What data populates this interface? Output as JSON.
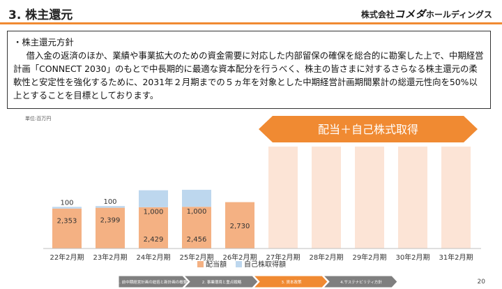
{
  "header": {
    "title": "3. 株主還元",
    "logo_prefix": "株式会社",
    "logo_brand": "コメダ",
    "logo_suffix": "ホールディングス"
  },
  "policy": {
    "heading": "・株主還元方針",
    "body": "借入金の返済のほか、業績や事業拡大のための資金需要に対応した内部留保の確保を総合的に勘案した上で、中期経営計画「CONNECT 2030」のもとで中長期的に最適な資本配分を行うべく、株主の皆さまに対するさらなる株主還元の柔軟性と安定性を強化するために、2031年２月期までの５ヵ年を対象とした中期経営計画期間累計の総還元性向を50%以上とすることを目標としております。"
  },
  "unit_label": "単位:百万円",
  "banner_label": "配当＋自己株式取得",
  "chart_data": {
    "type": "bar",
    "stacked": true,
    "categories": [
      "22年2月期",
      "23年2月期",
      "24年2月期",
      "25年2月期",
      "26年2月期",
      "27年2月期",
      "28年2月期",
      "29年2月期",
      "30年2月期",
      "31年2月期"
    ],
    "series": [
      {
        "name": "配当額",
        "values": [
          2353,
          2399,
          2429,
          2456,
          2730,
          null,
          null,
          null,
          null,
          null
        ],
        "color": "#f4b183"
      },
      {
        "name": "自己株取得額",
        "values": [
          100,
          100,
          1000,
          1000,
          null,
          null,
          null,
          null,
          null,
          null
        ],
        "color": "#bdd7ee"
      }
    ],
    "planned_categories": [
      "27年2月期",
      "28年2月期",
      "29年2月期",
      "30年2月期",
      "31年2月期"
    ],
    "planned_color": "#fce4d6",
    "ylim": [
      0,
      6000
    ],
    "grid": false,
    "legend": "bottom"
  },
  "footer": {
    "steps": [
      {
        "label": "1. 前中期経営計画の総括と新計画の概要",
        "active": false
      },
      {
        "label": "2. 事業環境と重点戦略",
        "active": false
      },
      {
        "label": "3. 資本政策",
        "active": true
      },
      {
        "label": "4.サステナビリティ方針",
        "active": false
      }
    ],
    "page_number": "20"
  }
}
